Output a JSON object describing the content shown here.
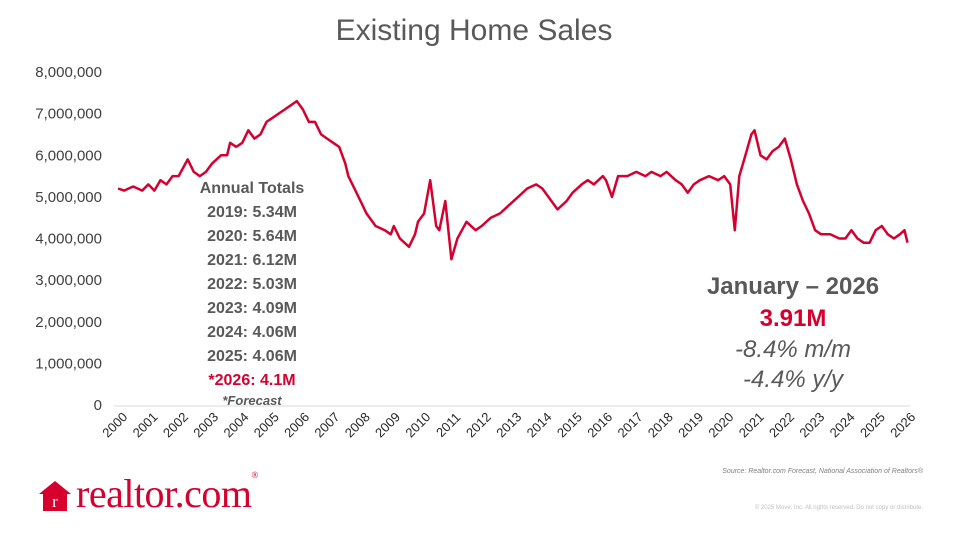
{
  "title": "Existing Home Sales",
  "annual": {
    "heading": "Annual Totals",
    "lines": [
      "2019: 5.34M",
      "2020: 5.64M",
      "2021: 6.12M",
      "2022: 5.03M",
      "2023: 4.09M",
      "2024: 4.06M",
      "2025: 4.06M"
    ],
    "forecast_line": "*2026: 4.1M",
    "forecast_note": "*Forecast"
  },
  "stat": {
    "month": "January – 2026",
    "value": "3.91M",
    "mom": "-8.4%  m/m",
    "yoy": "-4.4%  y/y"
  },
  "source": "Source: Realtor.com Forecast, National Association of Realtors®",
  "copyright": "© 2025 Move, Inc. All rights reserved. Do not copy or distribute.",
  "logo": {
    "text": "realtor.com",
    "mark": "r",
    "reg": "®"
  },
  "colors": {
    "line": "#d6002f",
    "text": "#595959",
    "forecast": "#d6002f"
  },
  "chart_data": {
    "type": "line",
    "title": "Existing Home Sales",
    "xlabel": "",
    "ylabel": "",
    "ylim": [
      0,
      8000000
    ],
    "xlim": [
      2000,
      2026.1
    ],
    "yticks": [
      "0",
      "1,000,000",
      "2,000,000",
      "3,000,000",
      "4,000,000",
      "5,000,000",
      "6,000,000",
      "7,000,000",
      "8,000,000"
    ],
    "xticks": [
      "2000",
      "2001",
      "2002",
      "2003",
      "2004",
      "2005",
      "2006",
      "2007",
      "2008",
      "2009",
      "2010",
      "2011",
      "2012",
      "2013",
      "2014",
      "2015",
      "2016",
      "2017",
      "2018",
      "2019",
      "2020",
      "2021",
      "2022",
      "2023",
      "2024",
      "2025",
      "2026"
    ],
    "grid": false,
    "legend": "none",
    "series": [
      {
        "x": [
          2000.0,
          2000.2,
          2000.5,
          2000.8,
          2001.0,
          2001.2,
          2001.4,
          2001.6,
          2001.8,
          2002.0,
          2002.3,
          2002.5,
          2002.7,
          2002.9,
          2003.1,
          2003.4,
          2003.6,
          2003.7,
          2003.9,
          2004.1,
          2004.3,
          2004.5,
          2004.7,
          2004.9,
          2005.1,
          2005.3,
          2005.5,
          2005.7,
          2005.9,
          2006.1,
          2006.3,
          2006.5,
          2006.7,
          2006.9,
          2007.1,
          2007.3,
          2007.5,
          2007.6,
          2007.8,
          2008.0,
          2008.2,
          2008.5,
          2008.8,
          2009.0,
          2009.1,
          2009.3,
          2009.6,
          2009.8,
          2009.9,
          2010.1,
          2010.3,
          2010.5,
          2010.6,
          2010.8,
          2011.0,
          2011.2,
          2011.5,
          2011.8,
          2012.0,
          2012.3,
          2012.6,
          2012.9,
          2013.2,
          2013.5,
          2013.8,
          2014.0,
          2014.2,
          2014.5,
          2014.8,
          2015.0,
          2015.3,
          2015.5,
          2015.7,
          2016.0,
          2016.1,
          2016.3,
          2016.5,
          2016.8,
          2017.1,
          2017.4,
          2017.6,
          2017.9,
          2018.1,
          2018.4,
          2018.6,
          2018.8,
          2019.0,
          2019.2,
          2019.5,
          2019.8,
          2020.0,
          2020.2,
          2020.35,
          2020.5,
          2020.7,
          2020.9,
          2021.0,
          2021.2,
          2021.4,
          2021.6,
          2021.8,
          2022.0,
          2022.2,
          2022.4,
          2022.6,
          2022.8,
          2023.0,
          2023.2,
          2023.5,
          2023.8,
          2024.0,
          2024.2,
          2024.4,
          2024.6,
          2024.8,
          2025.0,
          2025.2,
          2025.4,
          2025.6,
          2025.8,
          2025.95,
          2026.05
        ],
        "y": [
          5200000,
          5150000,
          5250000,
          5150000,
          5300000,
          5150000,
          5400000,
          5300000,
          5500000,
          5500000,
          5900000,
          5600000,
          5500000,
          5600000,
          5800000,
          6000000,
          6000000,
          6300000,
          6200000,
          6300000,
          6600000,
          6400000,
          6500000,
          6800000,
          6900000,
          7000000,
          7100000,
          7200000,
          7300000,
          7100000,
          6800000,
          6800000,
          6500000,
          6400000,
          6300000,
          6200000,
          5800000,
          5500000,
          5200000,
          4900000,
          4600000,
          4300000,
          4200000,
          4100000,
          4300000,
          4000000,
          3800000,
          4100000,
          4400000,
          4600000,
          5400000,
          4300000,
          4200000,
          4900000,
          3500000,
          4000000,
          4400000,
          4200000,
          4300000,
          4500000,
          4600000,
          4800000,
          5000000,
          5200000,
          5300000,
          5200000,
          5000000,
          4700000,
          4900000,
          5100000,
          5300000,
          5400000,
          5300000,
          5500000,
          5400000,
          5000000,
          5500000,
          5500000,
          5600000,
          5500000,
          5600000,
          5500000,
          5600000,
          5400000,
          5300000,
          5100000,
          5300000,
          5400000,
          5500000,
          5400000,
          5500000,
          5300000,
          4200000,
          5500000,
          6000000,
          6500000,
          6600000,
          6000000,
          5900000,
          6100000,
          6200000,
          6400000,
          5900000,
          5300000,
          4900000,
          4600000,
          4200000,
          4100000,
          4100000,
          4000000,
          4000000,
          4200000,
          4000000,
          3900000,
          3900000,
          4200000,
          4300000,
          4100000,
          4000000,
          4100000,
          4200000,
          3900000
        ]
      }
    ]
  }
}
